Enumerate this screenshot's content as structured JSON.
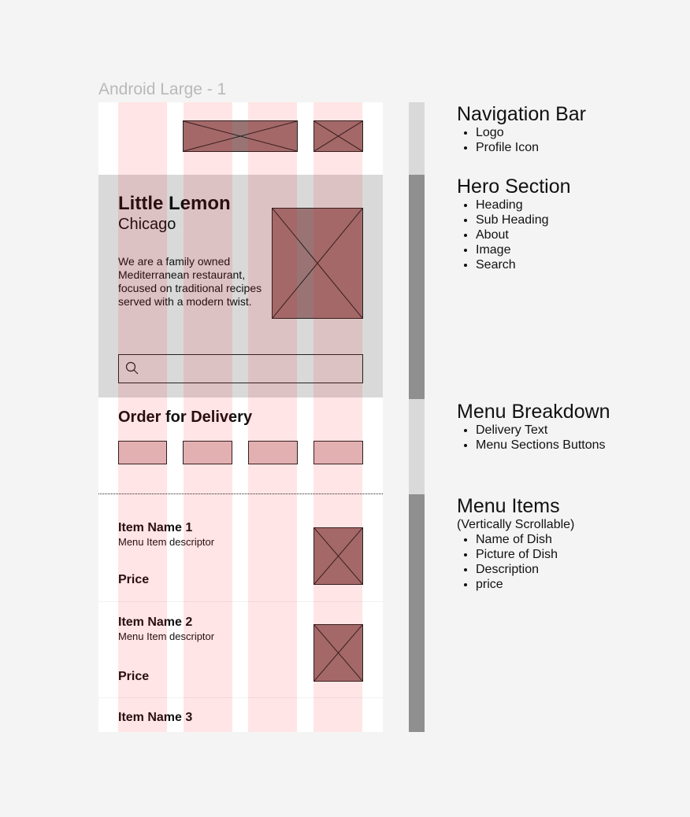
{
  "frame": {
    "label": "Android Large - 1"
  },
  "hero": {
    "heading": "Little Lemon",
    "subheading": "Chicago",
    "about": "We are a family owned Mediterranean restaurant, focused on traditional recipes served with a modern twist."
  },
  "menu": {
    "delivery_text": "Order for Delivery"
  },
  "items": [
    {
      "name": "Item Name 1",
      "descriptor": "Menu Item descriptor",
      "price": "Price"
    },
    {
      "name": "Item Name 2",
      "descriptor": "Menu Item descriptor",
      "price": "Price"
    },
    {
      "name": "Item Name 3"
    }
  ],
  "annotations": {
    "nav": {
      "title": "Navigation Bar",
      "bullets": [
        "Logo",
        "Profile Icon"
      ]
    },
    "hero": {
      "title": "Hero Section",
      "bullets": [
        "Heading",
        "Sub Heading",
        "About",
        "Image",
        "Search"
      ]
    },
    "menu_breakdown": {
      "title": "Menu Breakdown",
      "bullets": [
        "Delivery Text",
        "Menu Sections Buttons"
      ]
    },
    "menu_items": {
      "title": "Menu Items",
      "subtitle": "(Vertically Scrollable)",
      "bullets": [
        "Name of Dish",
        "Picture of Dish",
        "Description",
        "price"
      ]
    }
  },
  "colors": {
    "background": "#f4f4f4",
    "hero_band": "#d9d9d9",
    "placeholder": "#9a7474",
    "button_placeholder": "#dfc4c6",
    "grid_column": "rgba(255,0,0,0.10)",
    "scroll_light": "#d9d9d9",
    "scroll_dark": "#8f8f8f"
  },
  "icons": {
    "search": "search-icon",
    "placeholder": "image-placeholder-icon"
  }
}
